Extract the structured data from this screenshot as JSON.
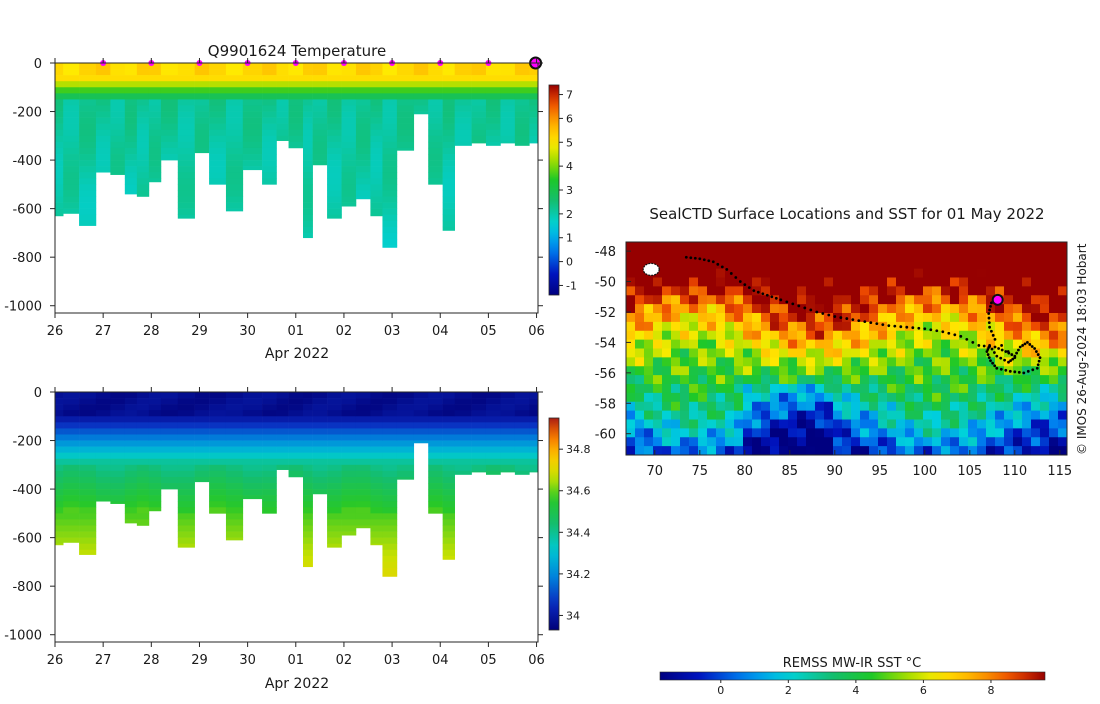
{
  "chart_data": [
    {
      "type": "heatmap",
      "title": "Q9901624  Temperature",
      "variable": "temperature",
      "xlabel": "Apr 2022",
      "x_tick_labels": [
        "26",
        "27",
        "28",
        "29",
        "30",
        "01",
        "02",
        "03",
        "04",
        "05",
        "06"
      ],
      "x_days": [
        0,
        1,
        2,
        3,
        4,
        5,
        6,
        7,
        8,
        9,
        10
      ],
      "xlim": [
        0,
        10.03
      ],
      "ylim": [
        -1030,
        0
      ],
      "y_ticks": [
        0,
        -200,
        -400,
        -600,
        -800,
        -1000
      ],
      "colorbar": {
        "min": -1.4,
        "max": 7.4,
        "ticks": [
          -1,
          0,
          1,
          2,
          3,
          4,
          5,
          6,
          7
        ]
      },
      "profile_days": [
        -0.05,
        0.17,
        0.5,
        0.85,
        1.15,
        1.45,
        1.7,
        1.95,
        2.2,
        2.55,
        2.9,
        3.2,
        3.55,
        3.9,
        4.3,
        4.6,
        4.85,
        5.15,
        5.35,
        5.65,
        5.95,
        6.25,
        6.55,
        6.8,
        7.1,
        7.45,
        7.75,
        8.05,
        8.3,
        8.65,
        8.95,
        9.25,
        9.55,
        9.85
      ],
      "profile_depths": [
        630,
        620,
        670,
        450,
        460,
        540,
        550,
        490,
        400,
        640,
        370,
        500,
        610,
        440,
        500,
        320,
        350,
        720,
        420,
        640,
        590,
        560,
        630,
        760,
        360,
        210,
        500,
        690,
        340,
        330,
        340,
        330,
        340,
        330
      ],
      "surface_marker_days": [
        1,
        2,
        3,
        4,
        5,
        6,
        7,
        8,
        9
      ],
      "end_marker_day": 9.98
    },
    {
      "type": "heatmap",
      "title": "",
      "variable": "salinity",
      "xlabel": "Apr 2022",
      "x_tick_labels": [
        "26",
        "27",
        "28",
        "29",
        "30",
        "01",
        "02",
        "03",
        "04",
        "05",
        "06"
      ],
      "x_days": [
        0,
        1,
        2,
        3,
        4,
        5,
        6,
        7,
        8,
        9,
        10
      ],
      "xlim": [
        0,
        10.03
      ],
      "ylim": [
        -1030,
        0
      ],
      "y_ticks": [
        0,
        -200,
        -400,
        -600,
        -800,
        -1000
      ],
      "colorbar": {
        "min": 33.93,
        "max": 34.95,
        "ticks": [
          34,
          34.2,
          34.4,
          34.6,
          34.8
        ]
      }
    },
    {
      "type": "heatmap",
      "title": "SealCTD Surface Locations and SST for 01 May 2022",
      "xlabel": "",
      "ylabel": "",
      "xlim": [
        66.8,
        115.8
      ],
      "ylim": [
        -61.4,
        -47.4
      ],
      "x_ticks": [
        70,
        75,
        80,
        85,
        90,
        95,
        100,
        105,
        110,
        115
      ],
      "y_ticks": [
        -48,
        -50,
        -52,
        -54,
        -56,
        -58,
        -60
      ],
      "y_tick_labels": [
        "-48",
        "-50",
        "-52",
        "-54",
        "-56",
        "-58",
        "-60"
      ],
      "colorbar": {
        "label": "REMSS MW-IR SST °C",
        "min": -1.8,
        "max": 9.6,
        "ticks": [
          0,
          2,
          4,
          6,
          8
        ]
      },
      "track": [
        [
          73.5,
          -48.4
        ],
        [
          75,
          -48.5
        ],
        [
          76.5,
          -48.7
        ],
        [
          78,
          -49.2
        ],
        [
          79.5,
          -50
        ],
        [
          81,
          -50.6
        ],
        [
          82.5,
          -50.9
        ],
        [
          84,
          -51.2
        ],
        [
          86,
          -51.6
        ],
        [
          88,
          -52
        ],
        [
          90,
          -52.3
        ],
        [
          92,
          -52.5
        ],
        [
          94,
          -52.7
        ],
        [
          96,
          -52.9
        ],
        [
          98,
          -53
        ],
        [
          100,
          -53.1
        ],
        [
          102,
          -53.3
        ],
        [
          104,
          -53.6
        ],
        [
          106,
          -54.2
        ],
        [
          107.8,
          -54.3
        ],
        [
          109,
          -54.6
        ],
        [
          110,
          -54.9
        ],
        [
          110.6,
          -54.3
        ],
        [
          111.4,
          -54
        ],
        [
          112.2,
          -54.4
        ],
        [
          112.8,
          -55
        ],
        [
          112.5,
          -55.7
        ],
        [
          111,
          -56
        ],
        [
          109.5,
          -55.9
        ],
        [
          108,
          -55.7
        ],
        [
          107.3,
          -55.2
        ],
        [
          106.9,
          -54.6
        ],
        [
          107.2,
          -54.2
        ],
        [
          108,
          -54.9
        ],
        [
          109.3,
          -55.3
        ],
        [
          110,
          -55
        ],
        [
          107.8,
          -53.8
        ],
        [
          107.2,
          -53
        ],
        [
          107.1,
          -52.1
        ],
        [
          107.4,
          -51.4
        ],
        [
          107.9,
          -51.2
        ]
      ],
      "latest_position": [
        108.1,
        -51.2
      ],
      "island_position": [
        69.6,
        -49.2
      ],
      "side_note": "© IMOS 26-Aug-2024 18:03 Hobart"
    }
  ]
}
